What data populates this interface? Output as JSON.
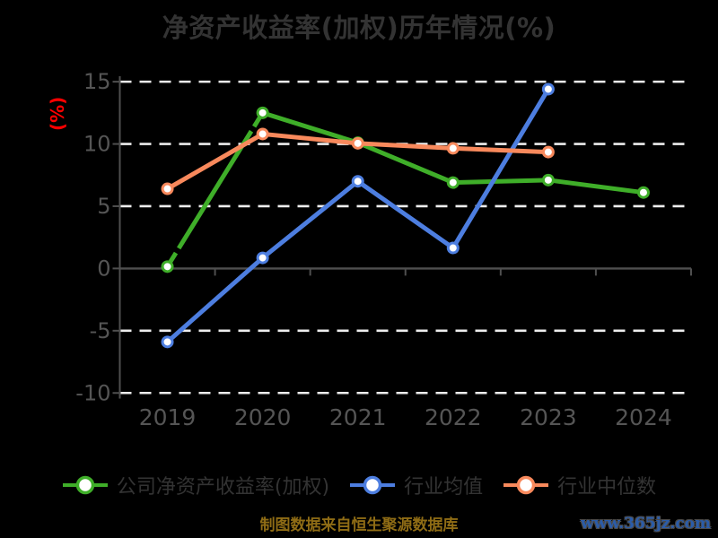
{
  "page": {
    "title": "净资产收益率(加权)历年情况(%)",
    "footer_note": "制图数据来自恒生聚源数据库",
    "watermark": "www.365jz.com"
  },
  "colors": {
    "background": "#000000",
    "title_text": "#333333",
    "axis_text": "#555555",
    "axis_line": "#4f4f4f",
    "grid_line": "#ededed",
    "y_unit_text": "#ff0000",
    "legend_text": "#333333",
    "footer_text": "#8f6c15",
    "watermark_text": "#2b5ca9"
  },
  "chart_data": {
    "type": "line",
    "title": "净资产收益率(加权)历年情况(%)",
    "xlabel": "",
    "ylabel": "(%)",
    "categories": [
      "2019",
      "2020",
      "2021",
      "2022",
      "2023",
      "2024"
    ],
    "y_ticks": [
      15,
      10,
      5,
      0,
      -5,
      -10
    ],
    "ylim": [
      -10,
      15
    ],
    "grid": "horizontal dashed white lines; solid gray axis line at y=0 with category ticks",
    "legend_position": "bottom",
    "series": [
      {
        "key": "company-roe-weighted",
        "name": "公司净资产收益率(加权)",
        "color": "#3fae29",
        "line_style": "dash-dot",
        "marker": "white-circle",
        "values": [
          0.15,
          12.5,
          10.1,
          6.9,
          7.1,
          6.1
        ]
      },
      {
        "key": "industry-average",
        "name": "行业均值",
        "color": "#4d7ee0",
        "line_style": "solid",
        "marker": "white-circle",
        "values": [
          -5.9,
          0.85,
          7.0,
          1.65,
          14.4,
          null
        ]
      },
      {
        "key": "industry-median",
        "name": "行业中位数",
        "color": "#f8895c",
        "line_style": "solid",
        "marker": "white-circle",
        "values": [
          6.4,
          10.8,
          10.05,
          9.65,
          9.35,
          null
        ]
      }
    ]
  }
}
